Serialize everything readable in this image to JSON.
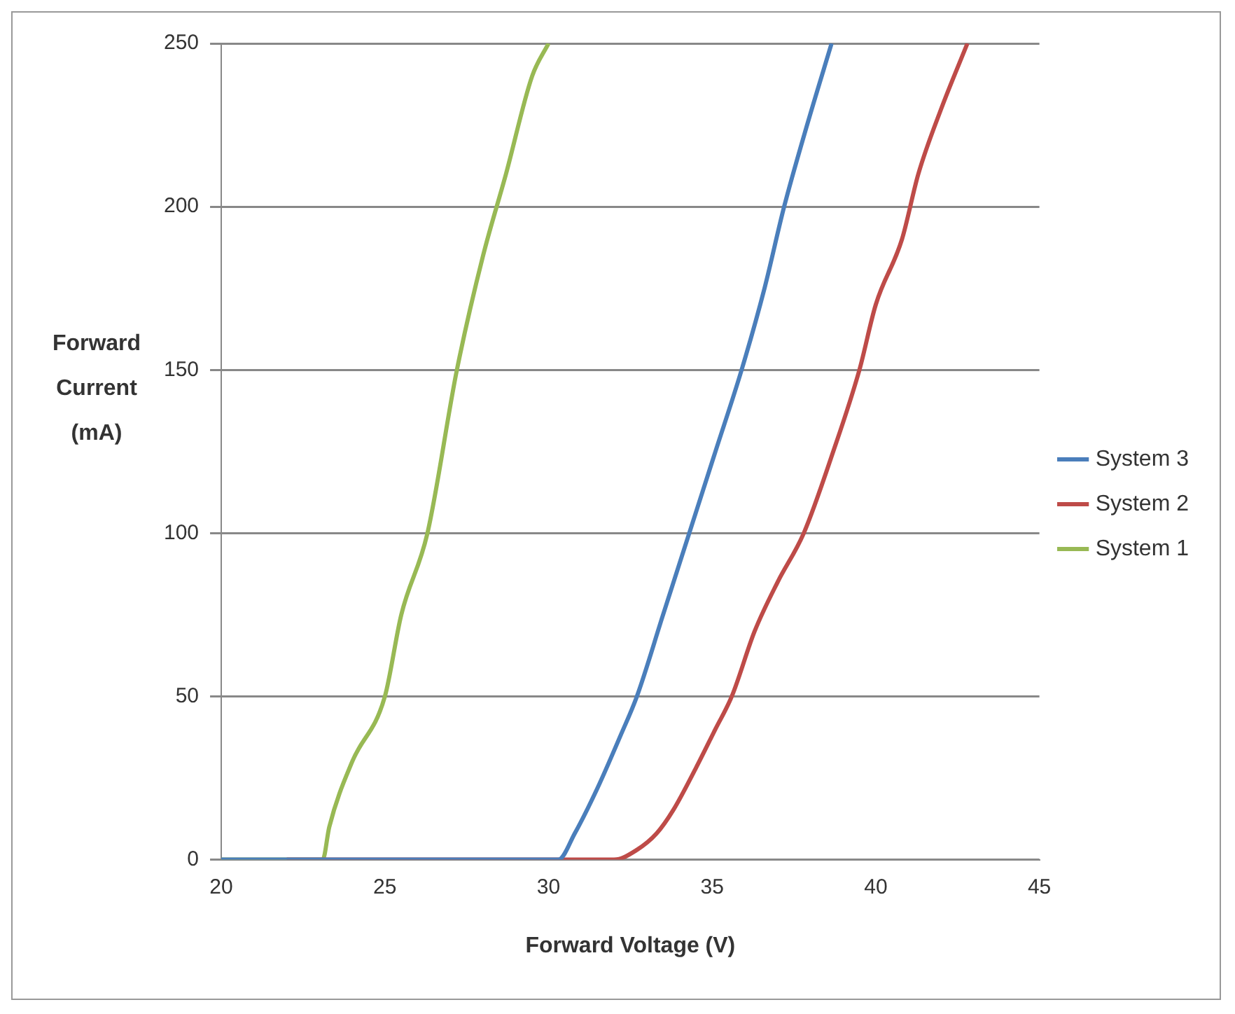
{
  "chart_data": {
    "type": "line",
    "xlabel": "Forward Voltage (V)",
    "ylabel": "Forward Current (mA)",
    "xlim": [
      20,
      45
    ],
    "xticks": [
      20,
      25,
      30,
      35,
      40,
      45
    ],
    "ylim": [
      0,
      250
    ],
    "yticks": [
      0,
      50,
      100,
      150,
      200,
      250
    ],
    "grid": "y",
    "legend": "right",
    "marker": "none",
    "line_style": "solid",
    "series": [
      {
        "name": "System 3",
        "color": "#4a7ebb",
        "x": [
          20,
          30.3,
          30.8,
          31.5,
          32.2,
          32.7,
          33.5,
          34.3,
          35.1,
          35.9,
          36.6,
          37.2,
          37.9,
          38.65
        ],
        "values": [
          0,
          0,
          8,
          22,
          38,
          50,
          75,
          100,
          125,
          150,
          175,
          200,
          225,
          250
        ]
      },
      {
        "name": "System 2",
        "color": "#be4b48",
        "x": [
          22,
          32,
          32.7,
          33.3,
          33.8,
          34.5,
          35.1,
          35.6,
          36.3,
          37,
          37.8,
          38.7,
          39.5,
          40,
          40.8,
          41.3,
          42,
          42.8
        ],
        "values": [
          0,
          0,
          3,
          8,
          15,
          28,
          40,
          50,
          70,
          85,
          100,
          125,
          150,
          170,
          190,
          210,
          230,
          250
        ]
      },
      {
        "name": "System 1",
        "color": "#98b954",
        "x": [
          20,
          23.1,
          23.3,
          24,
          25,
          25.5,
          26.3,
          27.2,
          28,
          28.7,
          29.5,
          30
        ],
        "values": [
          0,
          0,
          10,
          30,
          50,
          75,
          100,
          150,
          185,
          210,
          240,
          250
        ]
      }
    ]
  }
}
